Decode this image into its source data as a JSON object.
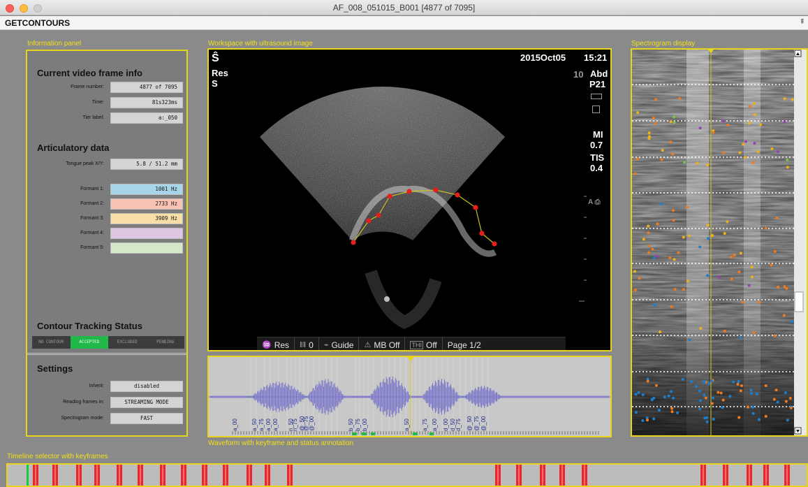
{
  "window": {
    "title": "AF_008_051015_B001  [4877 of 7095]"
  },
  "menubar": {
    "app_name": "GETCONTOURS",
    "pin": "⇞"
  },
  "sections": {
    "info": "Information panel",
    "workspace": "Workspace with ultrasound image",
    "spectrogram": "Spectrogram display",
    "waveform": "Waveform with keyframe and status annotation",
    "timeline": "Timeline selector with keyframes"
  },
  "info_panel": {
    "frame_heading": "Current video frame info",
    "frame_number_label": "Frame number:",
    "frame_number": "4877 of 7095",
    "time_label": "Time:",
    "time": "81s323ms",
    "tier_label_label": "Tier label:",
    "tier_label": "a:_050",
    "artic_heading": "Articulatory data",
    "tongue_label": "Tongue peak X/Y:",
    "tongue_value": "5.8 / 51.2 mm",
    "formants": [
      {
        "label": "Formant 1:",
        "value": "1001 Hz",
        "color": "#a9d5ea"
      },
      {
        "label": "Formant 2:",
        "value": "2733 Hz",
        "color": "#f7c3b4"
      },
      {
        "label": "Formant 3:",
        "value": "3909 Hz",
        "color": "#f8dfa8"
      },
      {
        "label": "Formant 4:",
        "value": "",
        "color": "#dcc6e1"
      },
      {
        "label": "Formant 5:",
        "value": "",
        "color": "#d5e8c8"
      }
    ],
    "tracking_heading": "Contour Tracking Status",
    "tracking_states": [
      "NO CONTOUR",
      "ACCEPTED",
      "EXCLUDED",
      "PENDING"
    ],
    "tracking_active": "ACCEPTED",
    "settings_heading": "Settings",
    "inherit_label": "Inherit:",
    "inherit_value": "disabled",
    "reading_label": "Reading frames in:",
    "reading_value": "STREAMING MODE",
    "spectro_mode_label": "Spectrogram mode:",
    "spectro_mode_value": "FAST"
  },
  "ultrasound": {
    "date": "2015Oct05",
    "time": "15:21",
    "preset": "Res",
    "mode": "S",
    "depth": "10",
    "exam": "Abd",
    "probe": "P21",
    "mi_label": "MI",
    "mi_value": "0.7",
    "tis_label": "TIS",
    "tis_value": "0.4",
    "logo_glyph": "Ŝ",
    "toolbar": [
      {
        "icon": "♒",
        "label": "Res"
      },
      {
        "icon": "‖‖",
        "label": "0"
      },
      {
        "icon": "⌁",
        "label": "Guide"
      },
      {
        "icon": "⚠",
        "label": "MB Off"
      },
      {
        "icon": "THI",
        "label": "Off"
      },
      {
        "icon": "",
        "label": "Page 1/2"
      }
    ],
    "contour_color": "#e61e1e"
  },
  "waveform": {
    "labels": [
      "a_00",
      "a_50",
      "a_75",
      "a_00",
      "a_00",
      "n_50",
      "n_75",
      "@_50",
      "@_75",
      "@_00",
      "b_50",
      "b_75",
      "b_00",
      "a_50",
      "a_75",
      "a_00",
      "d_00",
      "d_50",
      "d_75",
      "@_50",
      "@_75",
      "@_00"
    ],
    "wave_color": "#7a77c8"
  },
  "spectrogram": {
    "formant_colors": [
      "#1b7fd0",
      "#f07a20",
      "#f0b018",
      "#9a3fb8",
      "#7bc34a"
    ]
  },
  "timeline": {
    "keyframe_color": "#e8282b",
    "current_color": "#18c94a"
  }
}
